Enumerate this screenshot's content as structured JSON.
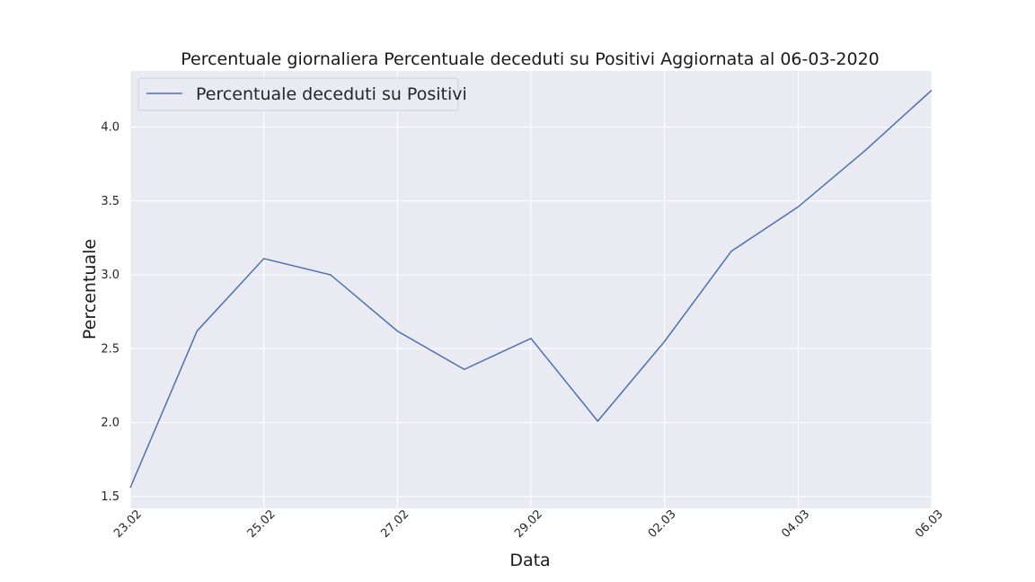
{
  "chart_data": {
    "type": "line",
    "title": "Percentuale giornaliera Percentuale deceduti su Positivi Aggiornata al 06-03-2020",
    "xlabel": "Data",
    "ylabel": "Percentuale",
    "x": [
      "23.02",
      "24.02",
      "25.02",
      "26.02",
      "27.02",
      "28.02",
      "29.02",
      "01.03",
      "02.03",
      "03.03",
      "04.03",
      "05.03",
      "06.03"
    ],
    "x_tick_labels": [
      "23.02",
      "25.02",
      "27.02",
      "29.02",
      "02.03",
      "04.03",
      "06.03"
    ],
    "y_ticks": [
      "1.5",
      "2.0",
      "2.5",
      "3.0",
      "3.5",
      "4.0"
    ],
    "ylim": [
      1.42,
      4.38
    ],
    "grid": true,
    "legend_position": "top-left",
    "series": [
      {
        "name": "Percentuale deceduti su Positivi",
        "color": "#4c72b0",
        "values": [
          1.56,
          2.62,
          3.11,
          3.0,
          2.62,
          2.36,
          2.57,
          2.01,
          2.55,
          3.16,
          3.46,
          3.84,
          4.25
        ]
      }
    ],
    "colors": {
      "plot_background": "#eaeaf2",
      "grid": "#ffffff"
    }
  }
}
